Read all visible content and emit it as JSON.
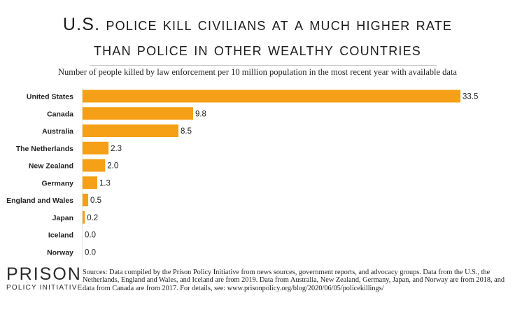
{
  "header": {
    "title_line1": "U.S. police kill civilians at a much higher rate",
    "title_line2": "than police in other wealthy countries",
    "subtitle": "Number of people killed by law enforcement per 10 million population in the most recent year with available data"
  },
  "chart_data": {
    "type": "bar",
    "orientation": "horizontal",
    "categories": [
      "United States",
      "Canada",
      "Australia",
      "The Netherlands",
      "New Zealand",
      "Germany",
      "England and Wales",
      "Japan",
      "Iceland",
      "Norway"
    ],
    "values": [
      33.5,
      9.8,
      8.5,
      2.3,
      2.0,
      1.3,
      0.5,
      0.2,
      0.0,
      0.0
    ],
    "value_labels": [
      "33.5",
      "9.8",
      "8.5",
      "2.3",
      "2.0",
      "1.3",
      "0.5",
      "0.2",
      "0.0",
      "0.0"
    ],
    "xlim": [
      0,
      33.5
    ],
    "grid": false,
    "colors": {
      "bar": "#f5a016"
    }
  },
  "footer": {
    "sources": "Sources: Data compiled by the Prison Policy Initiative from news sources, government reports, and advocacy groups. Data from the U.S., the Netherlands, England and Wales, and Iceland are from 2019. Data from Australia, New Zealand, Germany, Japan, and Norway are from 2018, and data from Canada are from 2017. For details,  see: www.prisonpolicy.org/blog/2020/06/05/policekillings/",
    "logo_line1": "PRISON",
    "logo_line2": "POLICY INITIATIVE"
  }
}
